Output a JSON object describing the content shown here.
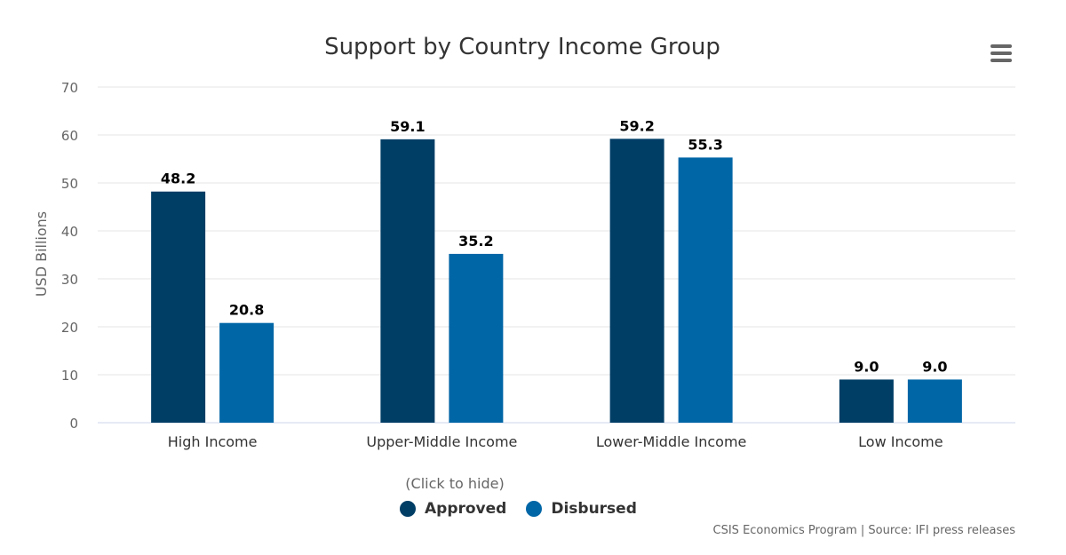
{
  "menu": {
    "icon": "hamburger-menu-icon"
  },
  "legend": {
    "hint": "(Click to hide)",
    "items": [
      {
        "label": "Approved",
        "color": "#003e66"
      },
      {
        "label": "Disbursed",
        "color": "#0066a6"
      }
    ]
  },
  "credits": "CSIS Economics Program | Source: IFI press releases",
  "chart_data": {
    "type": "bar",
    "title": "Support by Country Income Group",
    "xlabel": "",
    "ylabel": "USD Billions",
    "ylim": [
      0,
      70
    ],
    "yticks": [
      0,
      10,
      20,
      30,
      40,
      50,
      60,
      70
    ],
    "grid": true,
    "legend_position": "bottom-center",
    "categories": [
      "High Income",
      "Upper-Middle Income",
      "Lower-Middle Income",
      "Low Income"
    ],
    "series": [
      {
        "name": "Approved",
        "color": "#003e66",
        "values": [
          48.2,
          59.1,
          59.2,
          9.0
        ],
        "labels": [
          "48.2",
          "59.1",
          "59.2",
          "9.0"
        ]
      },
      {
        "name": "Disbursed",
        "color": "#0066a6",
        "values": [
          20.8,
          35.2,
          55.3,
          9.0
        ],
        "labels": [
          "20.8",
          "35.2",
          "55.3",
          "9.0"
        ]
      }
    ]
  }
}
